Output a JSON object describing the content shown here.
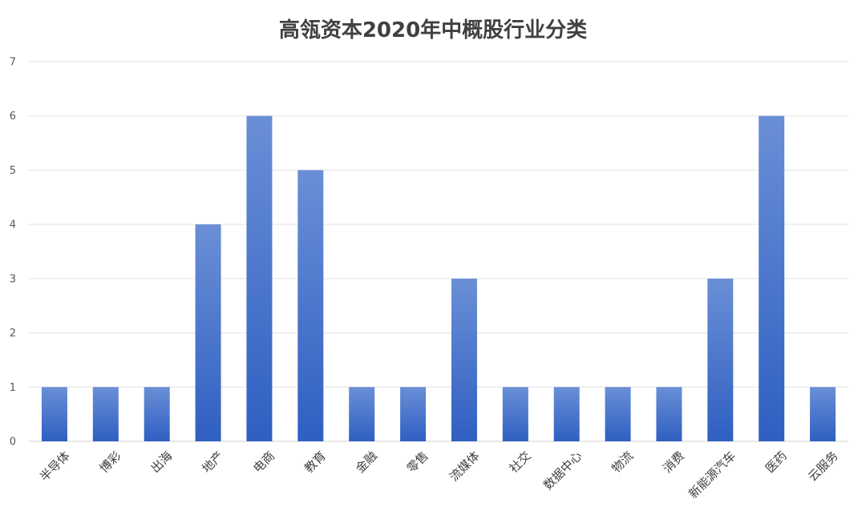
{
  "chart_data": {
    "type": "bar",
    "title": "高瓴资本2020年中概股行业分类",
    "xlabel": "",
    "ylabel": "",
    "ylim": [
      0,
      7
    ],
    "yticks": [
      0,
      1,
      2,
      3,
      4,
      5,
      6,
      7
    ],
    "grid": true,
    "legend": "none",
    "categories": [
      "半导体",
      "博彩",
      "出海",
      "地产",
      "电商",
      "教育",
      "金融",
      "零售",
      "流媒体",
      "社交",
      "数据中心",
      "物流",
      "消费",
      "新能源汽车",
      "医药",
      "云服务"
    ],
    "values": [
      1,
      1,
      1,
      4,
      6,
      5,
      1,
      1,
      3,
      1,
      1,
      1,
      1,
      3,
      6,
      1
    ],
    "colors": {
      "bar_top": "#6a8fd6",
      "bar_bottom": "#2f5fc2"
    }
  }
}
